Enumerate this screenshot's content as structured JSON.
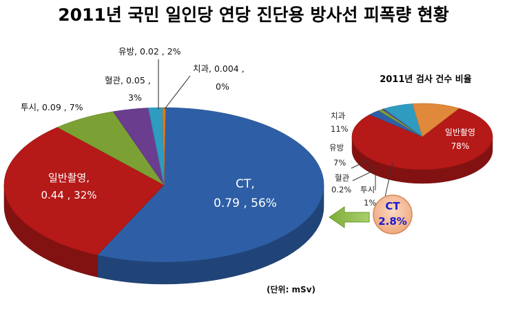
{
  "title": "2011년 국민 일인당 연당 진단용 방사선 피폭량 현황",
  "unit_note": "(단위: mSv)",
  "chart_data": [
    {
      "type": "pie",
      "title": "",
      "slices": [
        {
          "name": "CT",
          "value": 0.79,
          "percent": "56%",
          "label_name": "CT,",
          "label_value": "0.79 , 56%",
          "color": "#2e5fa6"
        },
        {
          "name": "일반촬영",
          "value": 0.44,
          "percent": "32%",
          "label_name": "일반촬영,",
          "label_value": "0.44 , 32%",
          "color": "#b51918"
        },
        {
          "name": "투시",
          "value": 0.09,
          "percent": "7%",
          "label": "투시, 0.09 , 7%",
          "color": "#7ba135"
        },
        {
          "name": "혈관",
          "value": 0.05,
          "percent": "3%",
          "label_line1": "혈관, 0.05 ,",
          "label_line2": "3%",
          "color": "#6b3d8f"
        },
        {
          "name": "유방",
          "value": 0.02,
          "percent": "2%",
          "label": "유방, 0.02 , 2%",
          "color": "#2e9cc0"
        },
        {
          "name": "치과",
          "value": 0.004,
          "percent": "0%",
          "label_line1": "치과, 0.004 ,",
          "label_line2": "0%",
          "color": "#e07b20"
        }
      ]
    },
    {
      "type": "pie",
      "title": "2011년 검사 건수 비율",
      "slices": [
        {
          "name": "일반촬영",
          "percent": 78,
          "label_name": "일반촬영",
          "label_value": "78%",
          "color": "#b51918"
        },
        {
          "name": "치과",
          "percent": 11,
          "label_name": "치과",
          "label_value": "11%",
          "color": "#e0893a"
        },
        {
          "name": "유방",
          "percent": 7,
          "label_name": "유방",
          "label_value": "7%",
          "color": "#2e9cc0"
        },
        {
          "name": "혈관",
          "percent": 0.2,
          "label_name": "혈관",
          "label_value": "0.2%",
          "color": "#6b3d8f"
        },
        {
          "name": "투시",
          "percent": 1,
          "label_name": "투시",
          "label_value": "1%",
          "color": "#7ba135"
        },
        {
          "name": "CT",
          "percent": 2.8,
          "label_name": "CT",
          "label_value": "2.8%",
          "color": "#2e5fa6"
        }
      ],
      "highlight": {
        "name": "CT",
        "value": "2.8%",
        "color": "#f4b894"
      }
    }
  ]
}
